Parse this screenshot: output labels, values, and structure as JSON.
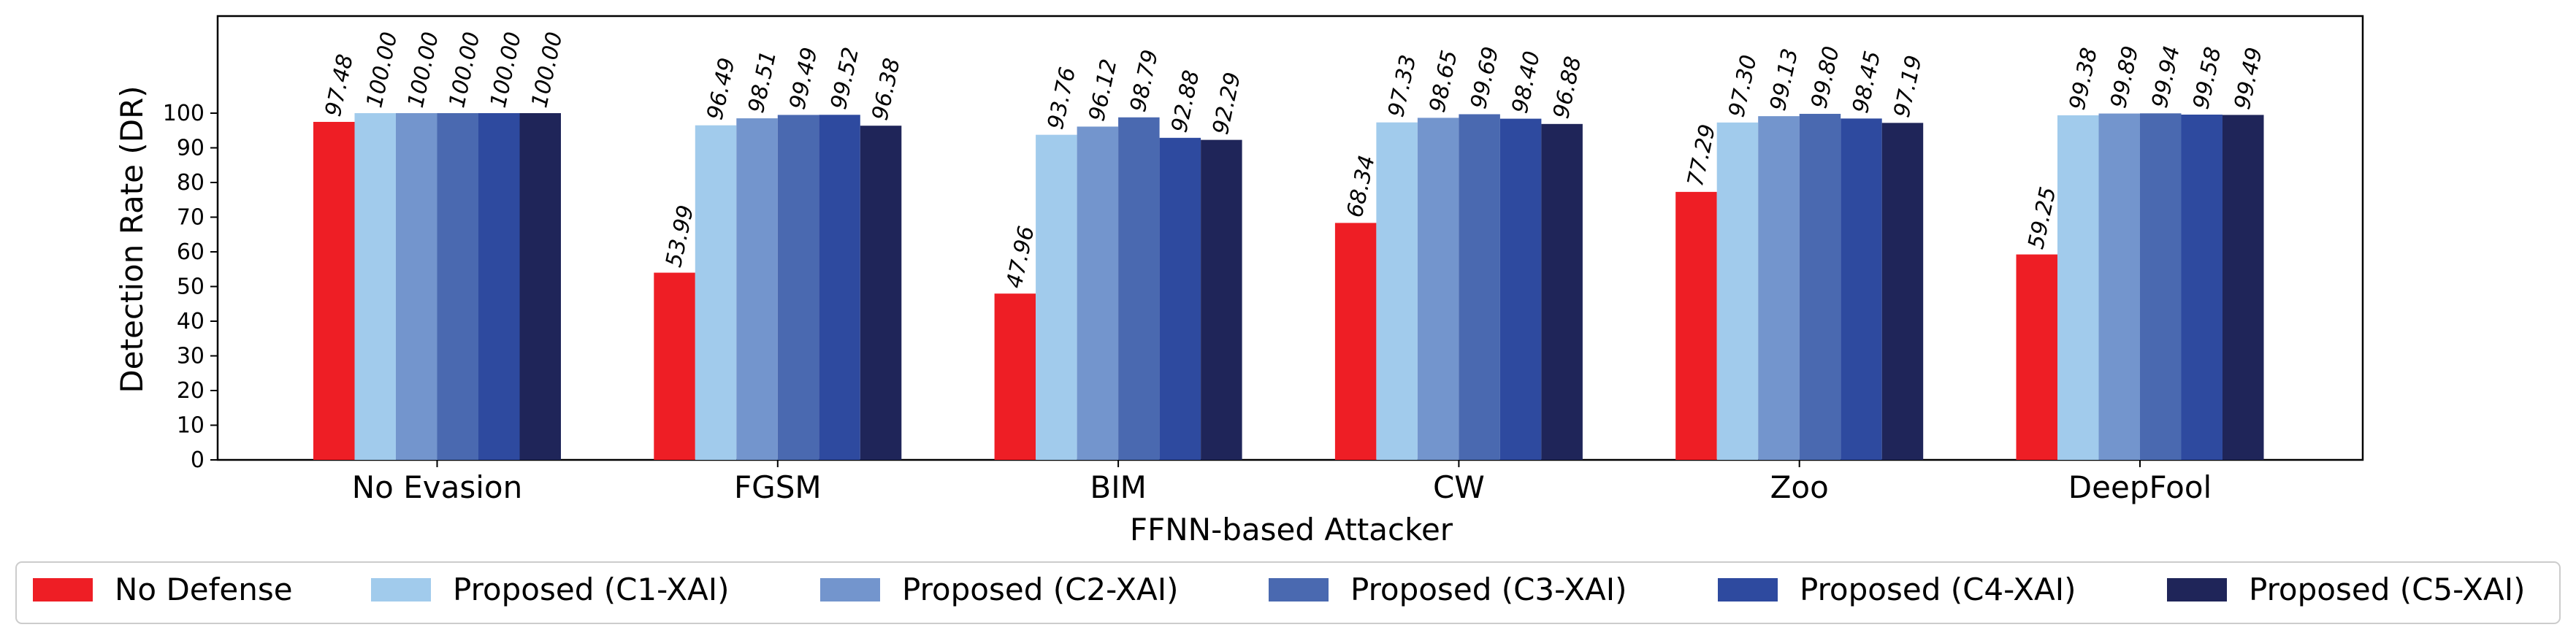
{
  "chart_data": {
    "type": "bar",
    "title": "",
    "xlabel": "FFNN-based Attacker",
    "ylabel": "Detection Rate (DR)",
    "ylim": [
      0,
      128
    ],
    "yticks": [
      0,
      10,
      20,
      30,
      40,
      50,
      60,
      70,
      80,
      90,
      100
    ],
    "categories": [
      "No Evasion",
      "FGSM",
      "BIM",
      "CW",
      "Zoo",
      "DeepFool"
    ],
    "legend_position": "bottom",
    "series": [
      {
        "name": "No Defense",
        "color": "#ee1e25",
        "values": [
          97.48,
          53.99,
          47.96,
          68.34,
          77.29,
          59.25
        ],
        "labels": [
          "97.48",
          "53.99",
          "47.96",
          "68.34",
          "77.29",
          "59.25"
        ]
      },
      {
        "name": "Proposed (C1-XAI)",
        "color": "#a1cbec",
        "values": [
          100.0,
          96.49,
          93.76,
          97.33,
          97.3,
          99.38
        ],
        "labels": [
          "100.00",
          "96.49",
          "93.76",
          "97.33",
          "97.30",
          "99.38"
        ]
      },
      {
        "name": "Proposed (C2-XAI)",
        "color": "#7395cd",
        "values": [
          100.0,
          98.51,
          96.12,
          98.65,
          99.13,
          99.89
        ],
        "labels": [
          "100.00",
          "98.51",
          "96.12",
          "98.65",
          "99.13",
          "99.89"
        ]
      },
      {
        "name": "Proposed (C3-XAI)",
        "color": "#4a69b0",
        "values": [
          100.0,
          99.49,
          98.79,
          99.69,
          99.8,
          99.94
        ],
        "labels": [
          "100.00",
          "99.49",
          "98.79",
          "99.69",
          "99.80",
          "99.94"
        ]
      },
      {
        "name": "Proposed (C4-XAI)",
        "color": "#2e4a9f",
        "values": [
          100.0,
          99.52,
          92.88,
          98.4,
          98.45,
          99.58
        ],
        "labels": [
          "100.00",
          "99.52",
          "92.88",
          "98.40",
          "98.45",
          "99.58"
        ]
      },
      {
        "name": "Proposed (C5-XAI)",
        "color": "#1f2559",
        "values": [
          100.0,
          96.38,
          92.29,
          96.88,
          97.19,
          99.49
        ],
        "labels": [
          "100.00",
          "96.38",
          "92.29",
          "96.88",
          "97.19",
          "99.49"
        ]
      }
    ]
  }
}
